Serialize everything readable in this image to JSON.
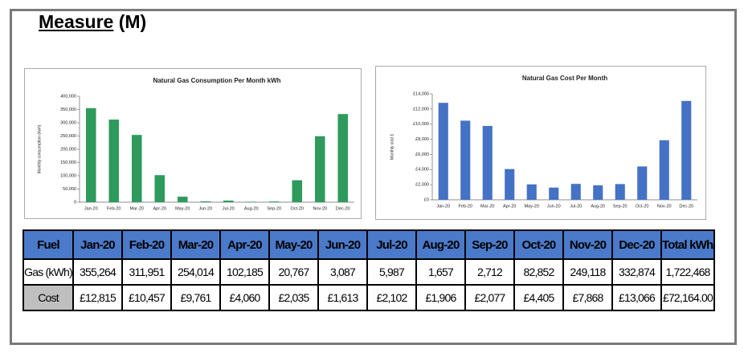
{
  "heading": {
    "word": "Measure",
    "suffix": "(M)"
  },
  "chart_data": [
    {
      "type": "bar",
      "title": "Natural Gas Consumption Per Month kWh",
      "ylabel": "Monthly consumption (kwh)",
      "categories": [
        "Jan-20",
        "Feb-20",
        "Mar-20",
        "Apr-20",
        "May-20",
        "Jun-20",
        "Jul-20",
        "Aug-20",
        "Sep-20",
        "Oct-20",
        "Nov-20",
        "Dec-20"
      ],
      "values": [
        355264,
        311951,
        254014,
        102185,
        20767,
        3087,
        5987,
        1657,
        2712,
        82852,
        249118,
        332874
      ],
      "color": "#2e9a5c",
      "ylim": [
        0,
        400000
      ],
      "yticks": [
        0,
        {
          "value": 50000,
          "label": "50,000"
        },
        {
          "value": 100000,
          "label": "100,000"
        },
        {
          "value": 150000,
          "label": "150,000"
        },
        {
          "value": 200000,
          "label": "200,000"
        },
        {
          "value": 250000,
          "label": "250,000"
        },
        {
          "value": 300000,
          "label": "300,000"
        },
        {
          "value": 350000,
          "label": "350,000"
        },
        {
          "value": 400000,
          "label": "400,000"
        }
      ]
    },
    {
      "type": "bar",
      "title": "Natural Gas Cost Per Month",
      "ylabel": "Monthly cost £",
      "categories": [
        "Jan-20",
        "Feb-20",
        "Mar-20",
        "Apr-20",
        "May-20",
        "Jun-20",
        "Jul-20",
        "Aug-20",
        "Sep-20",
        "Oct-20",
        "Nov-20",
        "Dec-20"
      ],
      "values": [
        12815,
        10457,
        9761,
        4060,
        2035,
        1613,
        2102,
        1906,
        2077,
        4405,
        7868,
        13066
      ],
      "color": "#4472c4",
      "ylim": [
        0,
        14000
      ],
      "yticks": [
        {
          "value": 0,
          "label": "£0"
        },
        {
          "value": 2000,
          "label": "£2,000"
        },
        {
          "value": 4000,
          "label": "£4,000"
        },
        {
          "value": 6000,
          "label": "£6,000"
        },
        {
          "value": 8000,
          "label": "£8,000"
        },
        {
          "value": 10000,
          "label": "£10,000"
        },
        {
          "value": 12000,
          "label": "£12,000"
        },
        {
          "value": 14000,
          "label": "£14,000"
        }
      ]
    }
  ],
  "table": {
    "header": [
      "Fuel",
      "Jan-20",
      "Feb-20",
      "Mar-20",
      "Apr-20",
      "May-20",
      "Jun-20",
      "Jul-20",
      "Aug-20",
      "Sep-20",
      "Oct-20",
      "Nov-20",
      "Dec-20",
      "Total kWh/yr"
    ],
    "rows": [
      [
        "Gas (kWh)",
        "355,264",
        "311,951",
        "254,014",
        "102,185",
        "20,767",
        "3,087",
        "5,987",
        "1,657",
        "2,712",
        "82,852",
        "249,118",
        "332,874",
        "1,722,468"
      ],
      [
        "Cost",
        "£12,815",
        "£10,457",
        "£9,761",
        "£4,060",
        "£2,035",
        "£1,613",
        "£2,102",
        "£1,906",
        "£2,077",
        "£4,405",
        "£7,868",
        "£13,066",
        "£72,164.00"
      ]
    ]
  }
}
